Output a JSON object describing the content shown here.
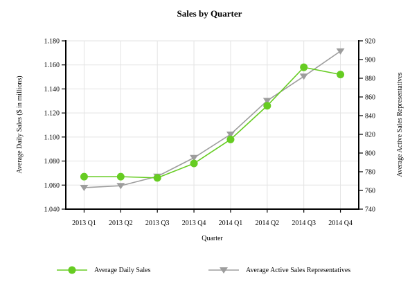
{
  "chart_data": {
    "type": "line",
    "title": "Sales by Quarter",
    "xlabel": "Quarter",
    "categories": [
      "2013 Q1",
      "2013 Q2",
      "2013 Q3",
      "2013 Q4",
      "2014 Q1",
      "2014 Q2",
      "2014 Q3",
      "2014 Q4"
    ],
    "left_axis": {
      "label": "Average Daily Sales ($ in millions)",
      "min": 1.04,
      "max": 1.18,
      "ticks": [
        "1.040",
        "1.060",
        "1.080",
        "1.100",
        "1.120",
        "1.140",
        "1.160",
        "1.180"
      ]
    },
    "right_axis": {
      "label": "Average Active Sales Representatives",
      "min": 740,
      "max": 920,
      "ticks": [
        "740",
        "760",
        "780",
        "800",
        "820",
        "840",
        "860",
        "880",
        "900",
        "920"
      ]
    },
    "series": [
      {
        "name": "Average Daily Sales",
        "axis": "left",
        "marker": "circle",
        "color": "#66CC22",
        "values": [
          1.067,
          1.067,
          1.066,
          1.078,
          1.098,
          1.126,
          1.158,
          1.152
        ]
      },
      {
        "name": "Average Active Sales Representatives",
        "axis": "right",
        "marker": "triangle-down",
        "color": "#9D9D9D",
        "values": [
          763,
          765,
          775,
          795,
          820,
          856,
          882,
          909
        ]
      }
    ],
    "grid": true,
    "legend_position": "bottom"
  },
  "colors": {
    "grid": "#E3E3E3",
    "axis": "#000000",
    "background": "#FFFFFF",
    "green_series": "#66CC22",
    "gray_series": "#9D9D9D"
  }
}
